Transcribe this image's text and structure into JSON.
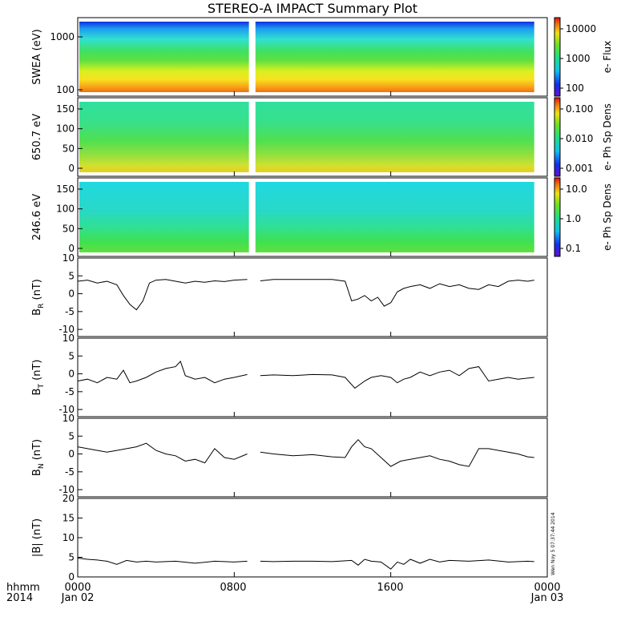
{
  "title": "STEREO-A IMPACT Summary Plot",
  "footer": {
    "hhmm": "hhmm",
    "year": "2014",
    "timestamp": "Wen Noy 5 07:37:44 2014"
  },
  "colors": {
    "axes": "#000000",
    "line": "#000000",
    "background": "#ffffff"
  },
  "chart_data": [
    {
      "type": "heatmap",
      "ylabel": "SWEA (eV)",
      "yscale": "log",
      "ylim": [
        100,
        2000
      ],
      "yticks": [
        "1000",
        "100"
      ],
      "colorbar_label": "e- Flux",
      "colorbar_ticks": [
        "10000",
        "1000",
        "100"
      ],
      "gap": [
        "08:45",
        "09:05"
      ]
    },
    {
      "type": "heatmap",
      "ylabel": "650.7 eV",
      "ylim": [
        0,
        180
      ],
      "yticks": [
        "150",
        "100",
        "50",
        "0"
      ],
      "colorbar_label": "e- Ph Sp Dens",
      "colorbar_ticks": [
        "0.100",
        "0.010",
        "0.001"
      ],
      "gap": [
        "08:45",
        "09:05"
      ]
    },
    {
      "type": "heatmap",
      "ylabel": "246.6 eV",
      "ylim": [
        0,
        180
      ],
      "yticks": [
        "150",
        "100",
        "50",
        "0"
      ],
      "colorbar_label": "e- Ph Sp Dens",
      "colorbar_ticks": [
        "10.0",
        "1.0",
        "0.1"
      ],
      "gap": [
        "08:45",
        "09:05"
      ]
    },
    {
      "type": "line",
      "ylabel": "B",
      "ylabel_sub": "R",
      "ylabel_unit": "(nT)",
      "ylim": [
        -12,
        10
      ],
      "yticks": [
        "10",
        "5",
        "0",
        "-5",
        "-10"
      ],
      "x": [
        "00:00",
        "00:30",
        "01:00",
        "01:30",
        "02:00",
        "02:20",
        "02:40",
        "03:00",
        "03:20",
        "03:40",
        "04:00",
        "04:30",
        "05:00",
        "05:30",
        "06:00",
        "06:30",
        "07:00",
        "07:30",
        "08:00",
        "08:40",
        "09:20",
        "10:00",
        "11:00",
        "12:00",
        "13:00",
        "13:40",
        "14:00",
        "14:20",
        "14:40",
        "15:00",
        "15:20",
        "15:40",
        "16:00",
        "16:20",
        "16:40",
        "17:00",
        "17:30",
        "18:00",
        "18:30",
        "19:00",
        "19:30",
        "20:00",
        "20:30",
        "21:00",
        "21:30",
        "22:00",
        "22:30",
        "23:00",
        "23:20"
      ],
      "values": [
        3.5,
        3.8,
        3.0,
        3.5,
        2.5,
        -0.5,
        -3.0,
        -4.5,
        -2.0,
        3.0,
        3.8,
        4.0,
        3.5,
        3.0,
        3.5,
        3.2,
        3.6,
        3.4,
        3.8,
        4.0,
        3.6,
        4.0,
        4.0,
        4.0,
        4.0,
        3.5,
        -2.0,
        -1.5,
        -0.5,
        -2.0,
        -1.0,
        -3.5,
        -2.5,
        0.5,
        1.5,
        2.0,
        2.5,
        1.5,
        2.8,
        2.0,
        2.5,
        1.5,
        1.2,
        2.5,
        2.0,
        3.5,
        3.8,
        3.5,
        3.8
      ],
      "gap": [
        "08:40",
        "09:20"
      ]
    },
    {
      "type": "line",
      "ylabel": "B",
      "ylabel_sub": "T",
      "ylabel_unit": "(nT)",
      "ylim": [
        -12,
        10
      ],
      "yticks": [
        "10",
        "5",
        "0",
        "-5",
        "-10"
      ],
      "x": [
        "00:00",
        "00:30",
        "01:00",
        "01:30",
        "02:00",
        "02:20",
        "02:40",
        "03:00",
        "03:30",
        "04:00",
        "04:30",
        "05:00",
        "05:15",
        "05:30",
        "06:00",
        "06:30",
        "07:00",
        "07:30",
        "08:00",
        "08:40",
        "09:20",
        "10:00",
        "11:00",
        "12:00",
        "13:00",
        "13:40",
        "14:10",
        "14:40",
        "15:00",
        "15:30",
        "16:00",
        "16:20",
        "16:40",
        "17:00",
        "17:30",
        "18:00",
        "18:30",
        "19:00",
        "19:30",
        "20:00",
        "20:30",
        "21:00",
        "21:30",
        "22:00",
        "22:30",
        "23:00",
        "23:20"
      ],
      "values": [
        -2.0,
        -1.5,
        -2.5,
        -1.0,
        -1.5,
        1.0,
        -2.5,
        -2.0,
        -1.0,
        0.5,
        1.5,
        2.0,
        3.5,
        -0.5,
        -1.5,
        -1.0,
        -2.5,
        -1.5,
        -1.0,
        -0.2,
        -0.5,
        -0.3,
        -0.5,
        -0.2,
        -0.3,
        -1.0,
        -4.0,
        -2.0,
        -1.0,
        -0.5,
        -1.0,
        -2.5,
        -1.5,
        -1.0,
        0.5,
        -0.5,
        0.5,
        1.0,
        -0.5,
        1.5,
        2.0,
        -2.0,
        -1.5,
        -1.0,
        -1.5,
        -1.2,
        -1.0
      ],
      "gap": [
        "08:40",
        "09:20"
      ]
    },
    {
      "type": "line",
      "ylabel": "B",
      "ylabel_sub": "N",
      "ylabel_unit": "(nT)",
      "ylim": [
        -12,
        10
      ],
      "yticks": [
        "10",
        "5",
        "0",
        "-5",
        "-10"
      ],
      "x": [
        "00:00",
        "00:30",
        "01:00",
        "01:30",
        "02:00",
        "02:30",
        "03:00",
        "03:30",
        "04:00",
        "04:30",
        "05:00",
        "05:30",
        "06:00",
        "06:30",
        "07:00",
        "07:30",
        "08:00",
        "08:40",
        "09:20",
        "10:00",
        "11:00",
        "12:00",
        "13:00",
        "13:40",
        "14:00",
        "14:20",
        "14:40",
        "15:00",
        "15:30",
        "16:00",
        "16:30",
        "17:00",
        "17:30",
        "18:00",
        "18:30",
        "19:00",
        "19:30",
        "20:00",
        "20:30",
        "21:00",
        "21:30",
        "22:00",
        "22:30",
        "23:00",
        "23:20"
      ],
      "values": [
        2.0,
        1.5,
        1.0,
        0.5,
        1.0,
        1.5,
        2.0,
        3.0,
        1.0,
        0.0,
        -0.5,
        -2.0,
        -1.5,
        -2.5,
        1.5,
        -1.0,
        -1.5,
        0.0,
        0.5,
        0.0,
        -0.5,
        -0.2,
        -0.8,
        -1.0,
        2.0,
        4.0,
        2.0,
        1.5,
        -1.0,
        -3.5,
        -2.0,
        -1.5,
        -1.0,
        -0.5,
        -1.5,
        -2.0,
        -3.0,
        -3.5,
        1.5,
        1.5,
        1.0,
        0.5,
        0.0,
        -0.8,
        -1.0
      ],
      "gap": [
        "08:40",
        "09:20"
      ]
    },
    {
      "type": "line",
      "ylabel": "|B|",
      "ylabel_unit": "(nT)",
      "ylim": [
        0,
        20
      ],
      "yticks": [
        "20",
        "15",
        "10",
        "5",
        "0"
      ],
      "x": [
        "00:00",
        "00:30",
        "01:00",
        "01:30",
        "02:00",
        "02:30",
        "03:00",
        "03:30",
        "04:00",
        "05:00",
        "06:00",
        "07:00",
        "08:00",
        "08:40",
        "09:20",
        "10:00",
        "11:00",
        "12:00",
        "13:00",
        "14:00",
        "14:20",
        "14:40",
        "15:00",
        "15:30",
        "16:00",
        "16:20",
        "16:40",
        "17:00",
        "17:30",
        "18:00",
        "18:30",
        "19:00",
        "20:00",
        "21:00",
        "22:00",
        "23:00",
        "23:20"
      ],
      "values": [
        4.8,
        4.5,
        4.3,
        4.0,
        3.2,
        4.2,
        3.8,
        4.0,
        3.8,
        4.0,
        3.5,
        4.0,
        3.8,
        4.0,
        4.0,
        3.9,
        4.0,
        4.0,
        3.9,
        4.2,
        3.0,
        4.5,
        4.0,
        3.8,
        2.0,
        3.8,
        3.2,
        4.5,
        3.5,
        4.5,
        3.8,
        4.2,
        4.0,
        4.3,
        3.8,
        4.0,
        3.9
      ],
      "gap": [
        "08:40",
        "09:20"
      ]
    }
  ],
  "x_axis": {
    "tick_labels": [
      "0000",
      "0800",
      "1600",
      "0000"
    ],
    "date_labels": [
      "Jan 02",
      "Jan 03"
    ]
  }
}
